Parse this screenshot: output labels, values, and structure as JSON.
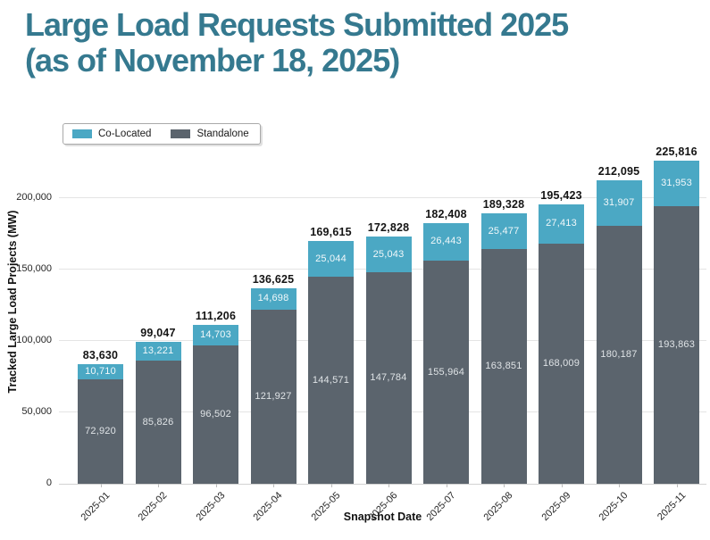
{
  "title": {
    "text": "Large Load Requests Submitted 2025\n(as of November 18, 2025)",
    "color": "#35798F"
  },
  "chart_data": {
    "type": "bar",
    "stacked": true,
    "title": "Large Load Requests Submitted 2025 (as of November 18, 2025)",
    "xlabel": "Snapshot Date",
    "ylabel": "Tracked Large Load Projects (MW)",
    "categories": [
      "2025-01",
      "2025-02",
      "2025-03",
      "2025-04",
      "2025-05",
      "2025-06",
      "2025-07",
      "2025-08",
      "2025-09",
      "2025-10",
      "2025-11"
    ],
    "series": [
      {
        "name": "Co-Located",
        "color": "#4BA8C4",
        "values": [
          10710,
          13221,
          14703,
          14698,
          25044,
          25043,
          26443,
          25477,
          27413,
          31907,
          31953
        ]
      },
      {
        "name": "Standalone",
        "color": "#5B646D",
        "values": [
          72920,
          85826,
          96502,
          121927,
          144571,
          147784,
          155964,
          163851,
          168009,
          180187,
          193863
        ]
      }
    ],
    "totals": [
      83630,
      99047,
      111206,
      136625,
      169615,
      172828,
      182408,
      189328,
      195423,
      212095,
      225816
    ],
    "yticks": [
      0,
      50000,
      100000,
      150000,
      200000
    ],
    "ylim": [
      0,
      232000
    ],
    "grid": true,
    "legend_position": "top-left"
  }
}
